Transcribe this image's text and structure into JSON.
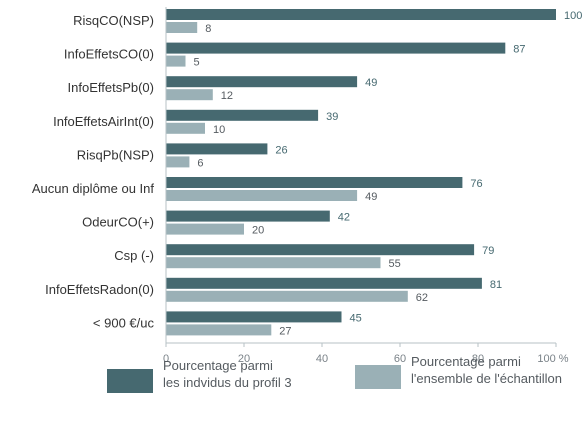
{
  "chart_data": {
    "type": "bar",
    "orientation": "horizontal",
    "categories": [
      "RisqCO(NSP)",
      "InfoEffetsCO(0)",
      "InfoEffetsPb(0)",
      "InfoEffetsAirInt(0)",
      "RisqPb(NSP)",
      "Aucun diplôme ou Inf",
      "OdeurCO(+)",
      "Csp (-)",
      "InfoEffetsRadon(0)",
      "< 900 €/uc"
    ],
    "series": [
      {
        "name": "Pourcentage parmi\nles indvidus du profil 3",
        "color": "#466970",
        "values": [
          100,
          87,
          49,
          39,
          26,
          76,
          42,
          79,
          81,
          45
        ]
      },
      {
        "name": "Pourcentage parmi\nl'ensemble de l'échantillon",
        "color": "#9ab0b6",
        "values": [
          8,
          5,
          12,
          10,
          6,
          49,
          20,
          55,
          62,
          27
        ]
      }
    ],
    "xlim": [
      0,
      100
    ],
    "xticks": [
      "0",
      "20",
      "40",
      "60",
      "80",
      "100 %"
    ],
    "grid": false,
    "legend_position": "bottom"
  },
  "colors": {
    "profile_value_text": "#466970",
    "sample_value_text": "#555b60",
    "axis": "#b7c2c6"
  }
}
